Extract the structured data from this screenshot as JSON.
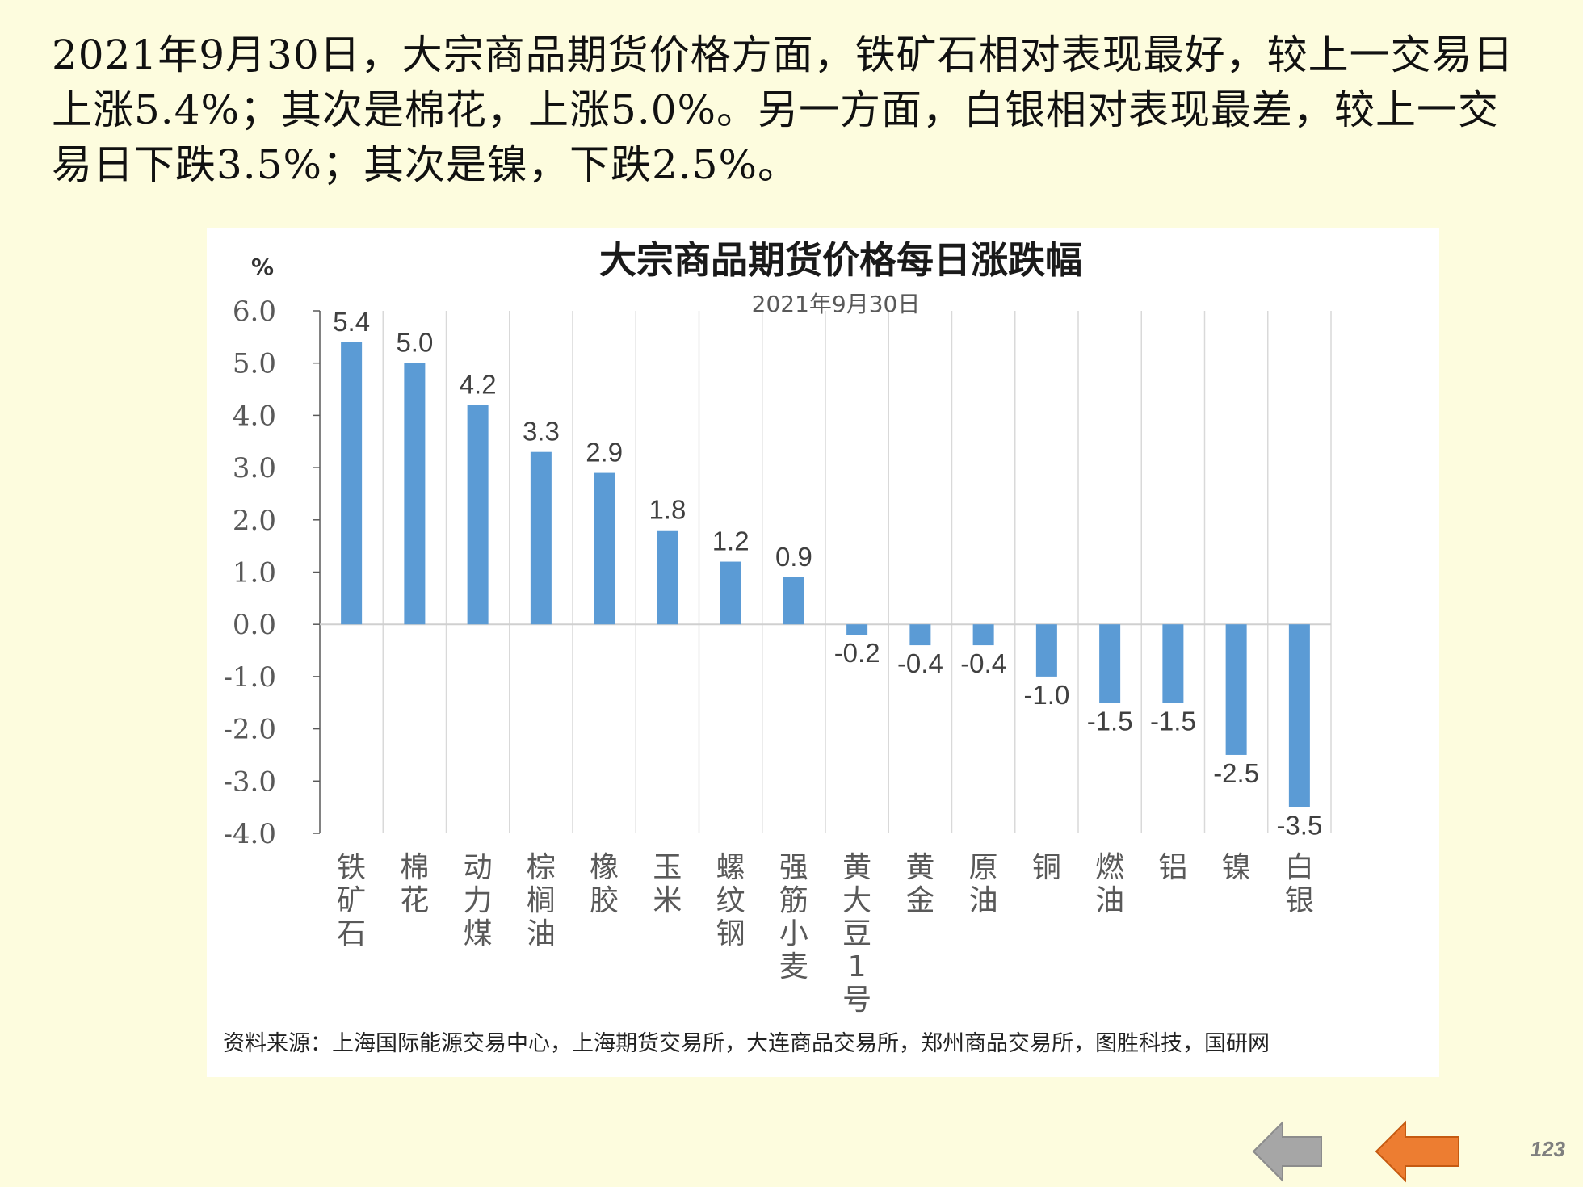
{
  "summary": "2021年9月30日，大宗商品期货价格方面，铁矿石相对表现最好，较上一交易日上涨5.4%；其次是棉花，上涨5.0%。另一方面，白银相对表现最差，较上一交易日下跌3.5%；其次是镍，下跌2.5%。",
  "source": "资料来源：上海国际能源交易中心，上海期货交易所，大连商品交易所，郑州商品交易所，图胜科技，国研网",
  "page_number": "123",
  "colors": {
    "background": "#fdfcde",
    "bar": "#5b9bd5",
    "nav_prev": "#a6a6a6",
    "nav_next": "#ed7d31"
  },
  "nav": {
    "prev_icon": "arrow-left-gray",
    "next_icon": "arrow-left-orange"
  },
  "chart_data": {
    "type": "bar",
    "title": "大宗商品期货价格每日涨跌幅",
    "subtitle": "2021年9月30日",
    "ylabel": "%",
    "xlabel": "",
    "ylim": [
      -4.0,
      6.0
    ],
    "yticks": [
      "6.0",
      "5.0",
      "4.0",
      "3.0",
      "2.0",
      "1.0",
      "0.0",
      "-1.0",
      "-2.0",
      "-3.0",
      "-4.0"
    ],
    "grid": "vertical",
    "categories": [
      "铁矿石",
      "棉花",
      "动力煤",
      "棕榈油",
      "橡胶",
      "玉米",
      "螺纹钢",
      "强筋小麦",
      "黄大豆1号",
      "黄金",
      "原油",
      "铜",
      "燃油",
      "铝",
      "镍",
      "白银"
    ],
    "values": [
      5.4,
      5.0,
      4.2,
      3.3,
      2.9,
      1.8,
      1.2,
      0.9,
      -0.2,
      -0.4,
      -0.4,
      -1.0,
      -1.5,
      -1.5,
      -2.5,
      -3.5
    ],
    "data_labels": [
      "5.4",
      "5.0",
      "4.2",
      "3.3",
      "2.9",
      "1.8",
      "1.2",
      "0.9",
      "-0.2",
      "-0.4",
      "-0.4",
      "-1.0",
      "-1.5",
      "-1.5",
      "-2.5",
      "-3.5"
    ]
  }
}
